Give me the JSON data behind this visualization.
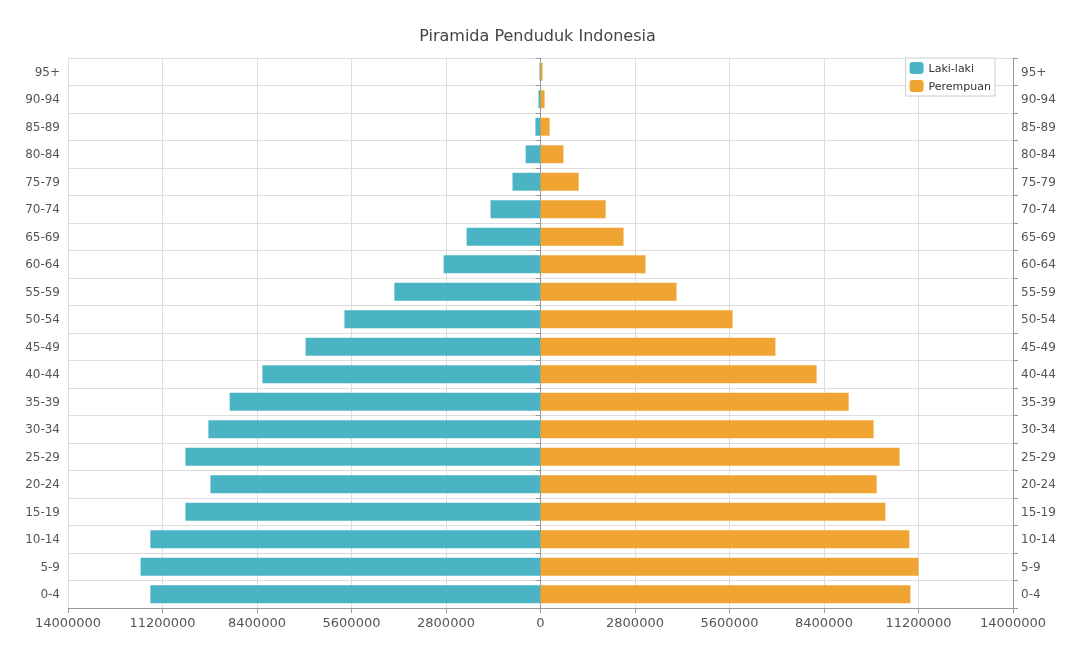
{
  "chart_data": {
    "type": "bar",
    "orientation": "horizontal",
    "title": "Piramida Penduduk Indonesia",
    "categories": [
      "95+",
      "90-94",
      "85-89",
      "80-84",
      "75-79",
      "70-74",
      "65-69",
      "60-64",
      "55-59",
      "50-54",
      "45-49",
      "40-44",
      "35-39",
      "30-34",
      "25-29",
      "20-24",
      "15-19",
      "10-14",
      "5-9",
      "0-4"
    ],
    "series": [
      {
        "name": "Laki-laki",
        "color": "#4ab3c4",
        "values": [
          -30000,
          -60000,
          -150000,
          -440000,
          -830000,
          -1480000,
          -2190000,
          -2870000,
          -4330000,
          -5810000,
          -6960000,
          -8240000,
          -9210000,
          -9840000,
          -10520000,
          -9780000,
          -10520000,
          -11560000,
          -11850000,
          -11560000
        ]
      },
      {
        "name": "Perempuan",
        "color": "#f0a431",
        "values": [
          60000,
          120000,
          270000,
          680000,
          1130000,
          1930000,
          2460000,
          3110000,
          4030000,
          5690000,
          6960000,
          8180000,
          9130000,
          9870000,
          10640000,
          9960000,
          10220000,
          10930000,
          11200000,
          10960000
        ]
      }
    ],
    "xlim": [
      -14000000,
      14000000
    ],
    "xticks": [
      {
        "value": -14000000,
        "label": "14000000"
      },
      {
        "value": -11200000,
        "label": "11200000"
      },
      {
        "value": -8400000,
        "label": "8400000"
      },
      {
        "value": -5600000,
        "label": "5600000"
      },
      {
        "value": -2800000,
        "label": "2800000"
      },
      0,
      2800000,
      5600000,
      8400000,
      11200000,
      14000000
    ],
    "grid": true,
    "legend": "top right",
    "stacked": true
  }
}
